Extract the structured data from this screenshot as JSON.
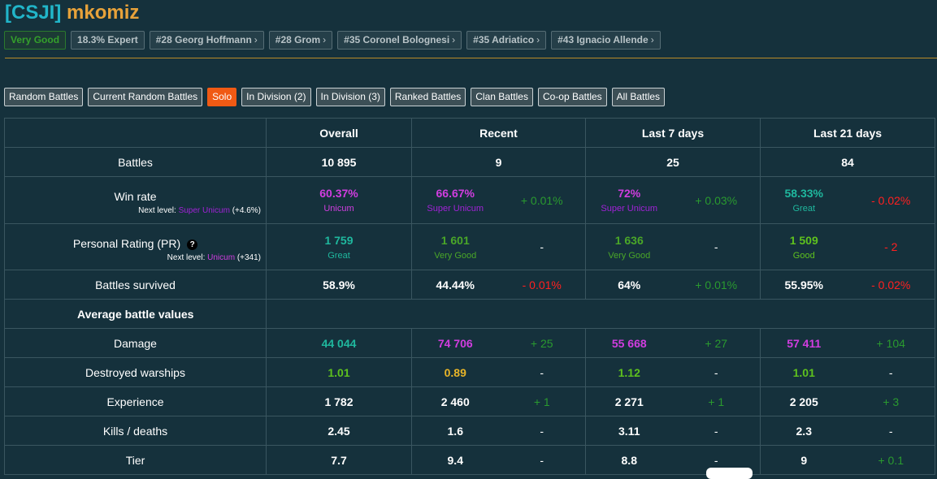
{
  "player": {
    "clan_tag": "[CSJI]",
    "name": "mkomiz"
  },
  "badges": [
    {
      "label": "Very Good",
      "chevron": ""
    },
    {
      "label": "18.3% Expert",
      "chevron": ""
    },
    {
      "label": "#28 Georg Hoffmann",
      "chevron": "›"
    },
    {
      "label": "#28 Grom",
      "chevron": "›"
    },
    {
      "label": "#35 Coronel Bolognesi",
      "chevron": "›"
    },
    {
      "label": "#35 Adriatico",
      "chevron": "›"
    },
    {
      "label": "#43 Ignacio Allende",
      "chevron": "›"
    }
  ],
  "filters": [
    {
      "label": "Random Battles"
    },
    {
      "label": "Current Random Battles"
    },
    {
      "label": "Solo",
      "active": true
    },
    {
      "label": "In Division (2)"
    },
    {
      "label": "In Division (3)"
    },
    {
      "label": "Ranked Battles"
    },
    {
      "label": "Clan Battles"
    },
    {
      "label": "Co-op Battles"
    },
    {
      "label": "All Battles"
    }
  ],
  "columns": {
    "overall": "Overall",
    "recent": "Recent",
    "last7": "Last 7 days",
    "last21": "Last 21 days"
  },
  "rows": {
    "battles": {
      "label": "Battles",
      "overall": "10 895",
      "recent": "9",
      "last7": "25",
      "last21": "84"
    },
    "winrate": {
      "label": "Win rate",
      "next_prefix": "Next level: ",
      "next_level": "Super Unicum",
      "next_delta": "(+4.6%)",
      "overall": "60.37%",
      "overall_q": "Unicum",
      "recent": "66.67%",
      "recent_q": "Super Unicum",
      "recent_d": "+ 0.01%",
      "last7": "72%",
      "last7_q": "Super Unicum",
      "last7_d": "+ 0.03%",
      "last21": "58.33%",
      "last21_q": "Great",
      "last21_d": "- 0.02%"
    },
    "pr": {
      "label": "Personal Rating (PR)",
      "help_icon": "?",
      "next_prefix": "Next level: ",
      "next_level": "Unicum",
      "next_delta": "(+341)",
      "overall": "1 759",
      "overall_q": "Great",
      "recent": "1 601",
      "recent_q": "Very Good",
      "recent_d": "-",
      "last7": "1 636",
      "last7_q": "Very Good",
      "last7_d": "-",
      "last21": "1 509",
      "last21_q": "Good",
      "last21_d": "- 2"
    },
    "survived": {
      "label": "Battles survived",
      "overall": "58.9%",
      "recent": "44.44%",
      "recent_d": "- 0.01%",
      "last7": "64%",
      "last7_d": "+ 0.01%",
      "last21": "55.95%",
      "last21_d": "- 0.02%"
    },
    "avg_section": {
      "label": "Average battle values"
    },
    "damage": {
      "label": "Damage",
      "overall": "44 044",
      "recent": "74 706",
      "recent_d": "+ 25",
      "last7": "55 668",
      "last7_d": "+ 27",
      "last21": "57 411",
      "last21_d": "+ 104"
    },
    "destroyed": {
      "label": "Destroyed warships",
      "overall": "1.01",
      "recent": "0.89",
      "recent_d": "-",
      "last7": "1.12",
      "last7_d": "-",
      "last21": "1.01",
      "last21_d": "-"
    },
    "experience": {
      "label": "Experience",
      "overall": "1 782",
      "recent": "2 460",
      "recent_d": "+ 1",
      "last7": "2 271",
      "last7_d": "+ 1",
      "last21": "2 205",
      "last21_d": "+ 3"
    },
    "kd": {
      "label": "Kills / deaths",
      "overall": "2.45",
      "recent": "1.6",
      "recent_d": "-",
      "last7": "3.11",
      "last7_d": "-",
      "last21": "2.3",
      "last21_d": "-"
    },
    "tier": {
      "label": "Tier",
      "overall": "7.7",
      "recent": "9.4",
      "recent_d": "-",
      "last7": "8.8",
      "last7_d": "-",
      "last21": "9",
      "last21_d": "+ 0.1"
    }
  },
  "colors": {
    "background": "#15313c",
    "clan": "#21b5c9",
    "name": "#e7a23a",
    "unicum": "#d13de0",
    "super_unicum": "#a122d6",
    "great": "#1fb89e",
    "very_good": "#4aa728",
    "good": "#5ec11e",
    "positive": "#2a9a2f",
    "negative": "#ff2020",
    "active_filter": "#f05a14"
  }
}
